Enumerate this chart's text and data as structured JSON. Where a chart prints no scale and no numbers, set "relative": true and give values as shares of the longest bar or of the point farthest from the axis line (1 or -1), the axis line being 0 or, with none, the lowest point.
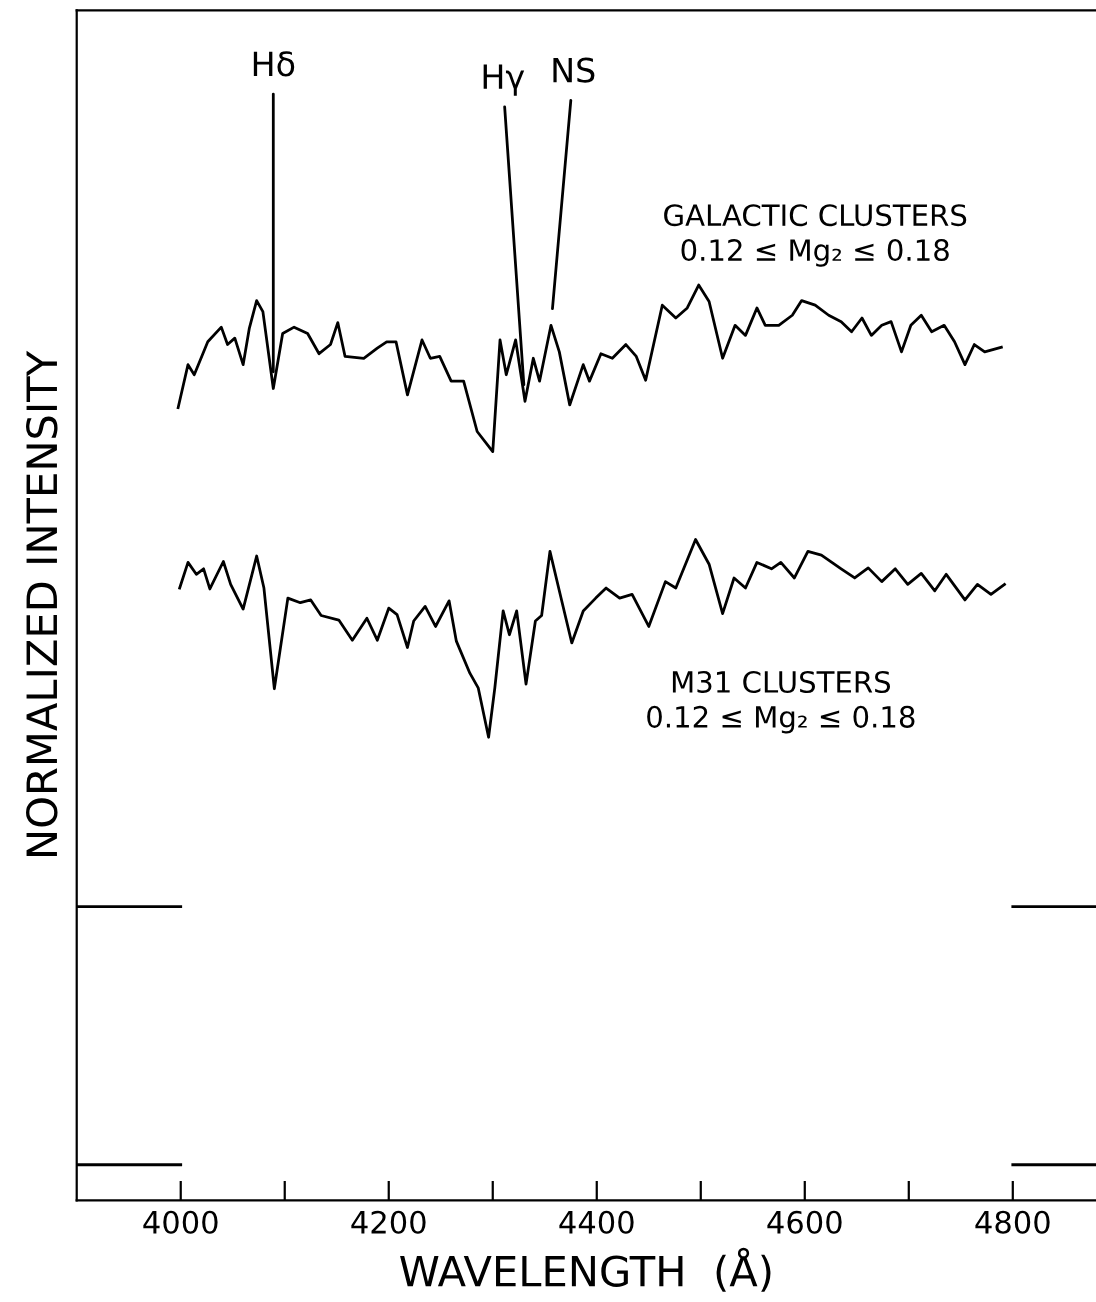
{
  "chart_data": {
    "type": "line",
    "relative": true,
    "xlabel": "WAVELENGTH  (Å)",
    "ylabel": "NORMALIZED INTENSITY",
    "xlim": [
      3900,
      4880
    ],
    "xticks": [
      4000,
      {
        "value": 4100,
        "label": null
      },
      4200,
      {
        "value": 4300,
        "label": null
      },
      4400,
      {
        "value": 4500,
        "label": null
      },
      4600,
      {
        "value": 4700,
        "label": null
      },
      4800
    ],
    "grid": false,
    "legend": false,
    "marker": "none",
    "line_style": "solid",
    "ref_lines": [
      {
        "axis": "y",
        "value": 0.321,
        "label": null,
        "color": "#000000"
      },
      {
        "axis": "y",
        "value": 0.039,
        "label": null,
        "color": "#000000"
      }
    ],
    "annotations": [
      {
        "text": "Hδ",
        "x": 4089,
        "y": 0.887
      },
      {
        "text": "Hγ",
        "x": 4331,
        "y": 0.873
      },
      {
        "text": "NS",
        "x": 4356,
        "y": 0.956
      }
    ],
    "series": [
      {
        "name": "GALACTIC CLUSTERS\n0.12 ≤ Mg₂ ≤ 0.18",
        "color": "#000000",
        "x": [
          3997.5,
          4007,
          4013,
          4026,
          4039,
          4045,
          4052,
          4060,
          4066,
          4073,
          4079,
          4089,
          4098,
          4109,
          4122,
          4133,
          4144,
          4151,
          4158,
          4176,
          4189,
          4198,
          4207,
          4218,
          4232,
          4240,
          4249,
          4260,
          4272,
          4285,
          4300,
          4307,
          4313,
          4322,
          4331,
          4339,
          4345,
          4356,
          4364,
          4374,
          4387,
          4393,
          4404,
          4415,
          4428,
          4438,
          4447,
          4463,
          4476,
          4487,
          4498,
          4508,
          4521,
          4533,
          4543,
          4554,
          4562,
          4575,
          4588,
          4597,
          4610,
          4623,
          4635,
          4645,
          4655,
          4664,
          4674,
          4683,
          4693,
          4702,
          4712,
          4722,
          4734,
          4744,
          4754,
          4763,
          4773,
          4789
        ],
        "values": [
          0.866,
          0.913,
          0.902,
          0.938,
          0.954,
          0.935,
          0.942,
          0.913,
          0.953,
          0.983,
          0.971,
          0.887,
          0.947,
          0.954,
          0.947,
          0.925,
          0.935,
          0.959,
          0.922,
          0.92,
          0.931,
          0.938,
          0.938,
          0.88,
          0.94,
          0.92,
          0.922,
          0.895,
          0.895,
          0.84,
          0.818,
          0.94,
          0.902,
          0.94,
          0.873,
          0.92,
          0.895,
          0.956,
          0.927,
          0.869,
          0.913,
          0.895,
          0.925,
          0.92,
          0.935,
          0.922,
          0.896,
          0.978,
          0.964,
          0.975,
          1.0,
          0.982,
          0.92,
          0.956,
          0.945,
          0.975,
          0.956,
          0.956,
          0.967,
          0.983,
          0.978,
          0.967,
          0.96,
          0.949,
          0.964,
          0.945,
          0.956,
          0.96,
          0.927,
          0.956,
          0.967,
          0.949,
          0.956,
          0.938,
          0.913,
          0.935,
          0.927,
          0.932
        ]
      },
      {
        "name": "M31 CLUSTERS\n0.12 ≤ Mg₂ ≤ 0.18",
        "color": "#000000",
        "x": [
          3999,
          4007,
          4015,
          4022,
          4028,
          4041,
          4048,
          4060,
          4073,
          4080,
          4090,
          4103,
          4115,
          4125,
          4135,
          4152,
          4165,
          4179,
          4189,
          4200,
          4208,
          4218,
          4224,
          4235,
          4245,
          4258,
          4265,
          4278,
          4286,
          4296,
          4302,
          4310,
          4316,
          4323,
          4332,
          4341,
          4347,
          4355,
          4364,
          4376,
          4387,
          4399,
          4409,
          4422,
          4434,
          4450,
          4466,
          4476,
          4495,
          4508,
          4521,
          4532,
          4543,
          4554,
          4568,
          4577,
          4590,
          4603,
          4616,
          4635,
          4648,
          4661,
          4674,
          4687,
          4699,
          4712,
          4725,
          4736,
          4754,
          4766,
          4779,
          4792
        ],
        "values": [
          0.669,
          0.697,
          0.684,
          0.69,
          0.668,
          0.698,
          0.673,
          0.646,
          0.704,
          0.669,
          0.559,
          0.658,
          0.653,
          0.656,
          0.639,
          0.634,
          0.612,
          0.636,
          0.612,
          0.647,
          0.64,
          0.604,
          0.633,
          0.649,
          0.627,
          0.655,
          0.611,
          0.576,
          0.56,
          0.506,
          0.56,
          0.644,
          0.618,
          0.644,
          0.564,
          0.633,
          0.639,
          0.709,
          0.666,
          0.609,
          0.644,
          0.658,
          0.669,
          0.658,
          0.662,
          0.627,
          0.676,
          0.669,
          0.722,
          0.695,
          0.641,
          0.68,
          0.669,
          0.697,
          0.69,
          0.697,
          0.68,
          0.709,
          0.705,
          0.69,
          0.68,
          0.691,
          0.676,
          0.69,
          0.673,
          0.685,
          0.666,
          0.684,
          0.656,
          0.673,
          0.662,
          0.673
        ]
      }
    ]
  }
}
